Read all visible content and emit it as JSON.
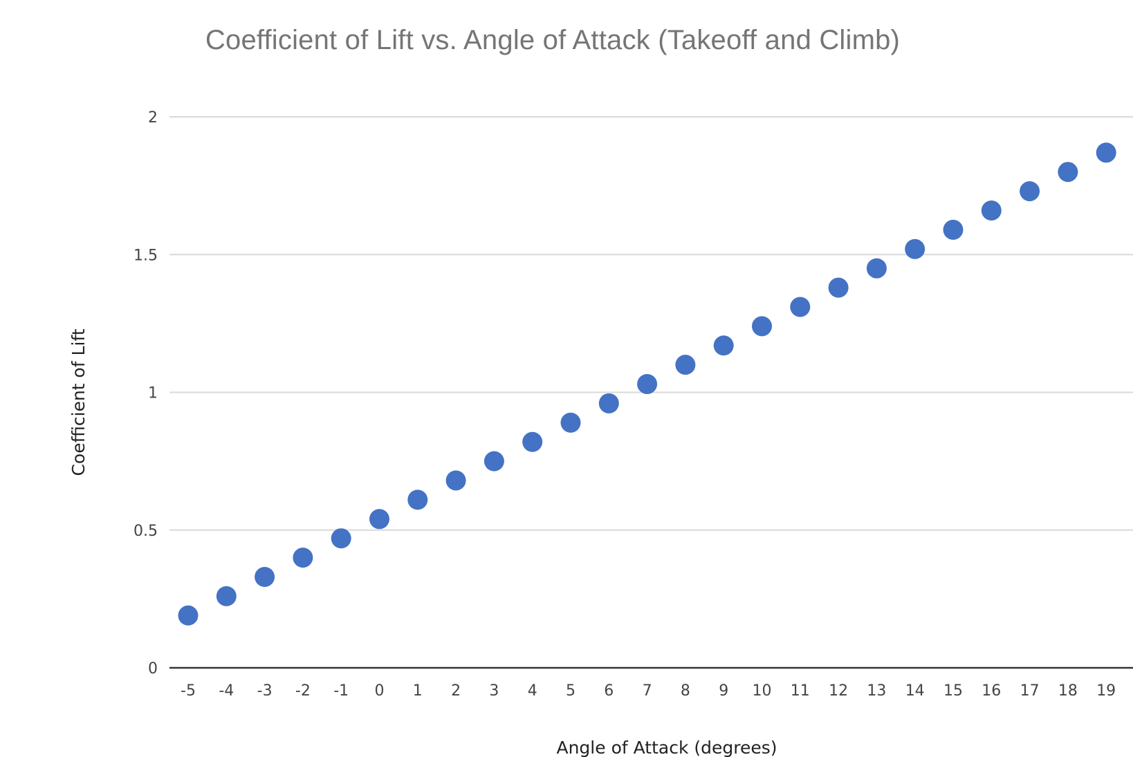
{
  "chart_data": {
    "type": "scatter",
    "title": "Coefficient of Lift vs. Angle of Attack (Takeoff and Climb)",
    "xlabel": "Angle of Attack (degrees)",
    "ylabel": "Coefficient of Lift",
    "xlim": [
      -5.5,
      19.5
    ],
    "ylim": [
      0,
      2
    ],
    "x_ticks": [
      "-5",
      "-4",
      "-3",
      "-2",
      "-1",
      "0",
      "1",
      "2",
      "3",
      "4",
      "5",
      "6",
      "7",
      "8",
      "9",
      "10",
      "11",
      "12",
      "13",
      "14",
      "15",
      "16",
      "17",
      "18",
      "19"
    ],
    "y_ticks": [
      "0",
      "0.5",
      "1",
      "1.5",
      "2"
    ],
    "grid": true,
    "legend": "none",
    "marker_color": "#4472C4",
    "series": [
      {
        "x": [
          -5,
          -4,
          -3,
          -2,
          -1,
          0,
          1,
          2,
          3,
          4,
          5,
          6,
          7,
          8,
          9,
          10,
          11,
          12,
          13,
          14,
          15,
          16,
          17,
          18,
          19
        ],
        "y": [
          0.19,
          0.26,
          0.33,
          0.4,
          0.47,
          0.54,
          0.61,
          0.68,
          0.75,
          0.82,
          0.89,
          0.96,
          1.03,
          1.1,
          1.17,
          1.24,
          1.31,
          1.38,
          1.45,
          1.52,
          1.59,
          1.66,
          1.73,
          1.8,
          1.87
        ]
      }
    ]
  }
}
